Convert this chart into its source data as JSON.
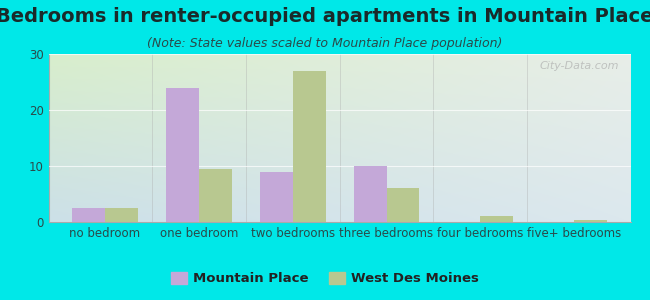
{
  "title": "Bedrooms in renter-occupied apartments in Mountain Place",
  "subtitle": "(Note: State values scaled to Mountain Place population)",
  "categories": [
    "no bedroom",
    "one bedroom",
    "two bedrooms",
    "three bedrooms",
    "four bedrooms",
    "five+ bedrooms"
  ],
  "mountain_place": [
    2.5,
    24,
    9,
    10,
    0,
    0
  ],
  "west_des_moines": [
    2.5,
    9.5,
    27,
    6,
    1.0,
    0.3
  ],
  "bar_color_mp": "#c4a8d8",
  "bar_color_wdm": "#b8c890",
  "background_outer": "#00e8e8",
  "background_chart_topleft": "#d8eecc",
  "background_chart_topright": "#e8eee8",
  "background_chart_bottomleft": "#cce0e8",
  "background_chart_bottomright": "#dce8ee",
  "ylim": [
    0,
    30
  ],
  "yticks": [
    0,
    10,
    20,
    30
  ],
  "bar_width": 0.35,
  "legend_mp": "Mountain Place",
  "legend_wdm": "West Des Moines",
  "watermark": "City-Data.com",
  "title_fontsize": 14,
  "subtitle_fontsize": 9,
  "tick_fontsize": 8.5,
  "title_color": "#1a2a2a",
  "subtitle_color": "#2a4a4a",
  "tick_color": "#2a4a4a"
}
